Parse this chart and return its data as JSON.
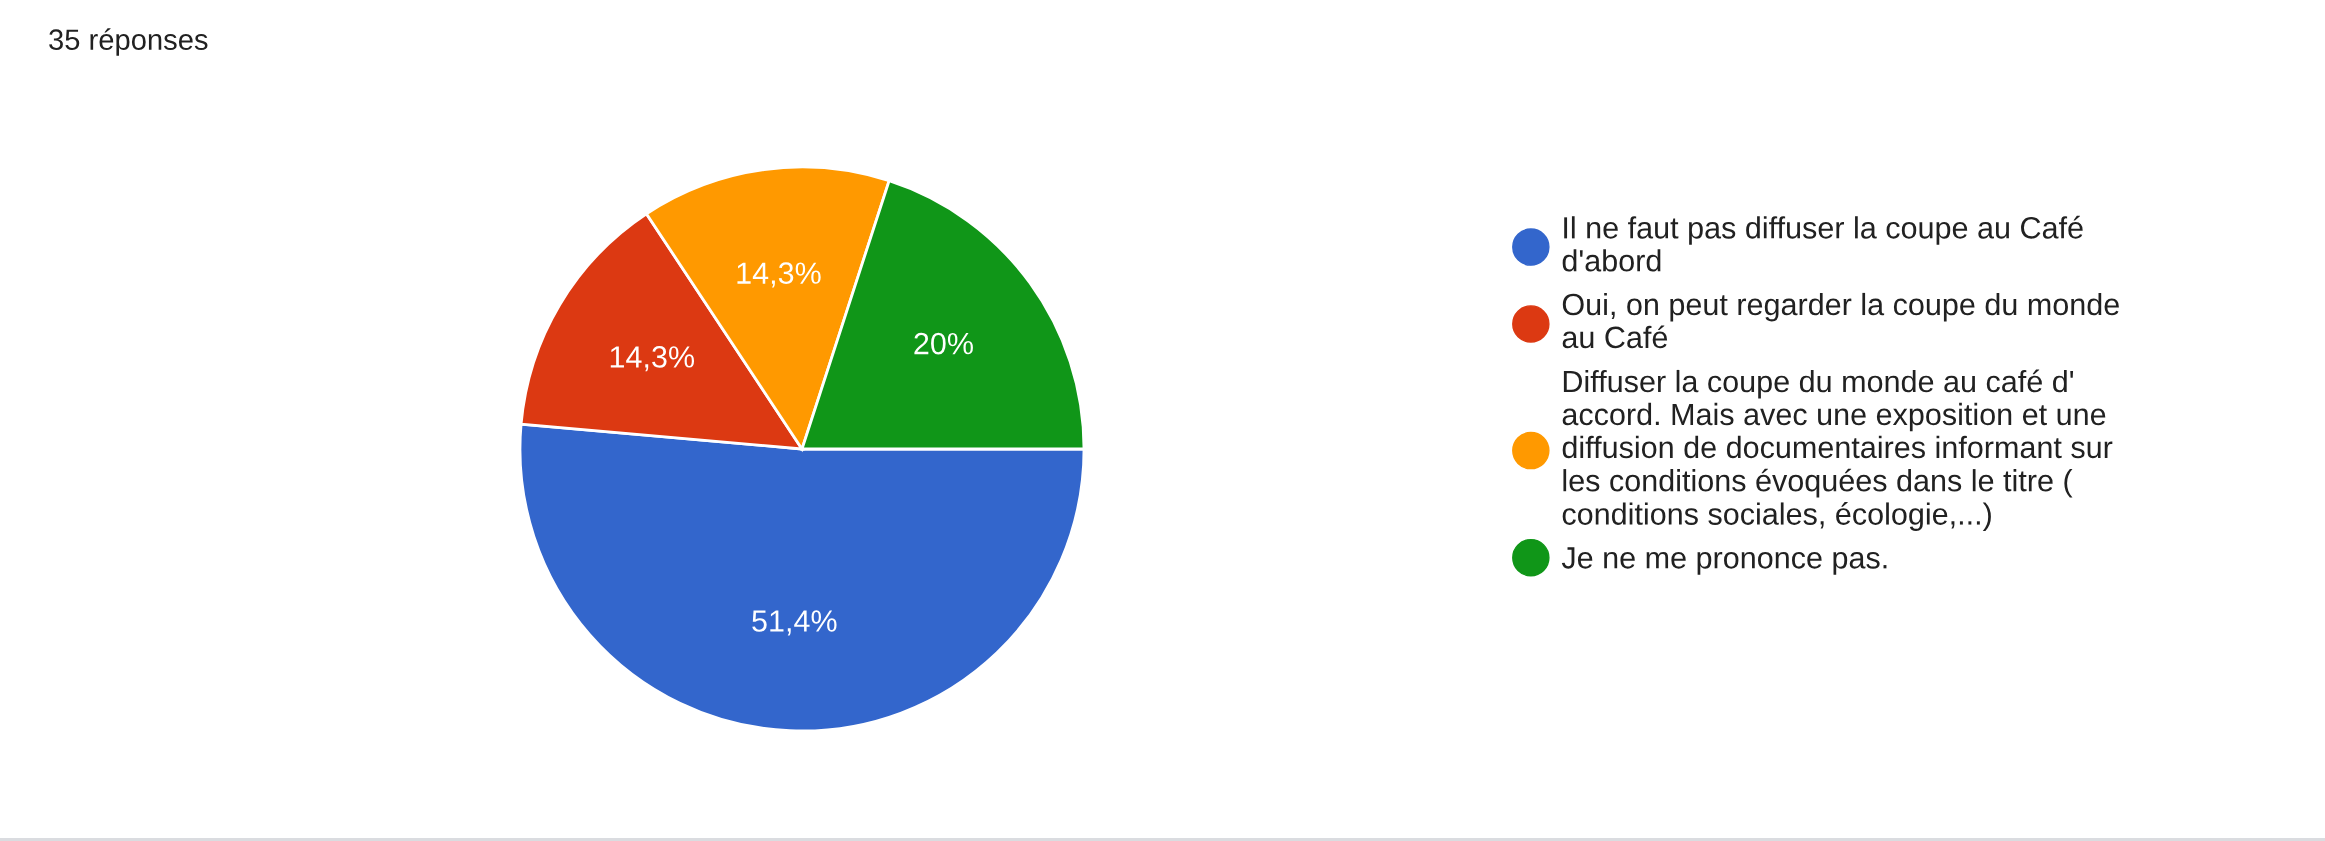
{
  "chart_data": {
    "type": "pie",
    "title": "35 réponses",
    "categories": [
      "Il ne faut pas diffuser la coupe au Café d'abord",
      "Oui, on peut regarder la coupe du monde au Café",
      "Diffuser la coupe du monde au café d' accord. Mais avec une exposition et une diffusion de documentaires informant sur les conditions évoquées dans le titre ( conditions sociales, écologie,...)",
      "Je ne me prononce pas."
    ],
    "values": [
      51.4,
      14.3,
      14.3,
      20
    ],
    "value_labels": [
      "51,4%",
      "14,3%",
      "14,3%",
      "20%"
    ],
    "colors": [
      "#3366cc",
      "#dc3912",
      "#ff9900",
      "#109618"
    ],
    "legend": "right"
  }
}
